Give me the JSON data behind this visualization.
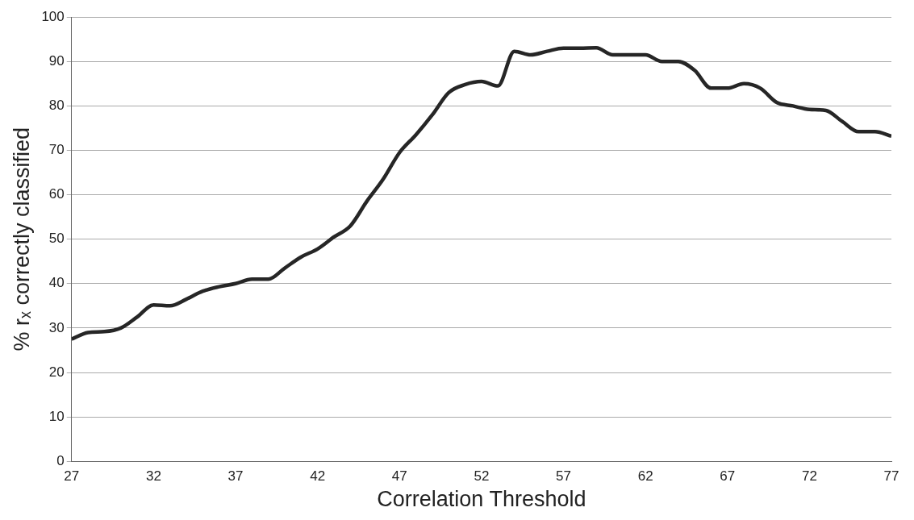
{
  "chart_data": {
    "type": "line",
    "xlabel": "Correlation Threshold",
    "ylabel": "% rₓ correctly classified",
    "x": [
      27,
      28,
      29,
      30,
      31,
      32,
      33,
      34,
      35,
      36,
      37,
      38,
      39,
      40,
      41,
      42,
      43,
      44,
      45,
      46,
      47,
      48,
      49,
      50,
      51,
      52,
      53,
      54,
      55,
      56,
      57,
      58,
      59,
      60,
      61,
      62,
      63,
      64,
      65,
      66,
      67,
      68,
      69,
      70,
      71,
      72,
      73,
      74,
      75,
      76,
      77
    ],
    "series": [
      {
        "color": "#262626",
        "values": [
          27.5,
          29,
          29.2,
          30,
          32.5,
          35.2,
          35,
          36.5,
          38.3,
          39.3,
          40,
          41,
          41,
          43.5,
          46,
          47.8,
          50.5,
          53,
          58.5,
          63.5,
          69.5,
          73.5,
          78,
          83,
          84.8,
          85.5,
          84.5,
          92.3,
          91.5,
          92.3,
          93,
          93,
          93.1,
          91.5,
          91.5,
          91.5,
          90,
          90,
          88,
          84,
          84,
          85,
          84,
          80.8,
          80,
          79.2,
          79,
          76.5,
          74.2,
          74.2,
          73.2
        ]
      }
    ],
    "xlim": [
      27,
      77
    ],
    "xticks": [
      27,
      32,
      37,
      42,
      47,
      52,
      57,
      62,
      67,
      72,
      77
    ],
    "ylim": [
      0,
      100
    ],
    "yticks": [
      0,
      10,
      20,
      30,
      40,
      50,
      60,
      70,
      80,
      90,
      100
    ],
    "grid": "y",
    "legend": false,
    "marker": "none",
    "line_style": "solid"
  }
}
